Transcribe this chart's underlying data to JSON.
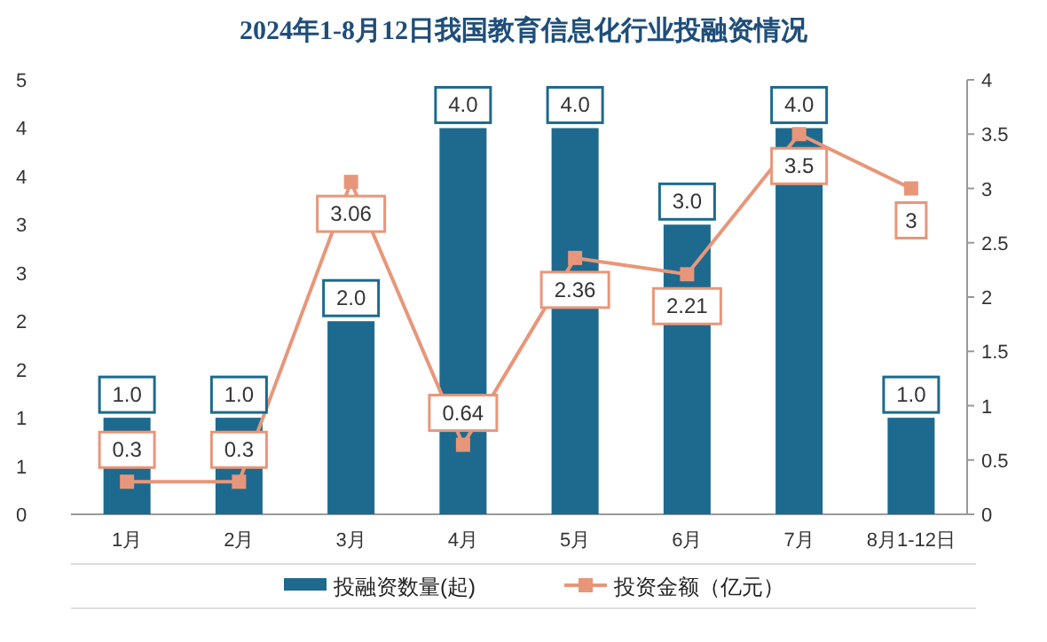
{
  "chart_data": {
    "type": "bar",
    "title": "2024年1-8月12日我国教育信息化行业投融资情况",
    "categories": [
      "1月",
      "2月",
      "3月",
      "4月",
      "5月",
      "6月",
      "7月",
      "8月1-12日"
    ],
    "series": [
      {
        "name": "投融资数量(起)",
        "color": "#1d6a8e",
        "values": [
          1,
          1,
          2,
          4,
          4,
          3,
          4,
          1
        ],
        "value_labels": [
          "1.0",
          "1.0",
          "2.0",
          "4.0",
          "4.0",
          "3.0",
          "4.0",
          "1.0"
        ]
      },
      {
        "name": "投资金额（亿元）",
        "type": "line",
        "axis": "y2",
        "color": "#e8967a",
        "marker": "square",
        "values": [
          0.3,
          0.3,
          3.06,
          0.64,
          2.36,
          2.21,
          3.5,
          3
        ],
        "value_labels": [
          "0.3",
          "0.3",
          "3.06",
          "0.64",
          "2.36",
          "2.21",
          "3.5",
          "3"
        ]
      }
    ],
    "ylim": [
      0,
      4.5
    ],
    "yticks": [
      0,
      {
        "value": 0.5,
        "label": "1"
      },
      1,
      {
        "value": 1.5,
        "label": "2"
      },
      2,
      {
        "value": 2.5,
        "label": "3"
      },
      3,
      {
        "value": 3.5,
        "label": "4"
      },
      4,
      {
        "value": 4.5,
        "label": "5"
      }
    ],
    "y2lim": [
      0,
      4
    ],
    "y2ticks": [
      0,
      0.5,
      1,
      1.5,
      2,
      2.5,
      3,
      3.5,
      4
    ],
    "legend": "bottom"
  }
}
